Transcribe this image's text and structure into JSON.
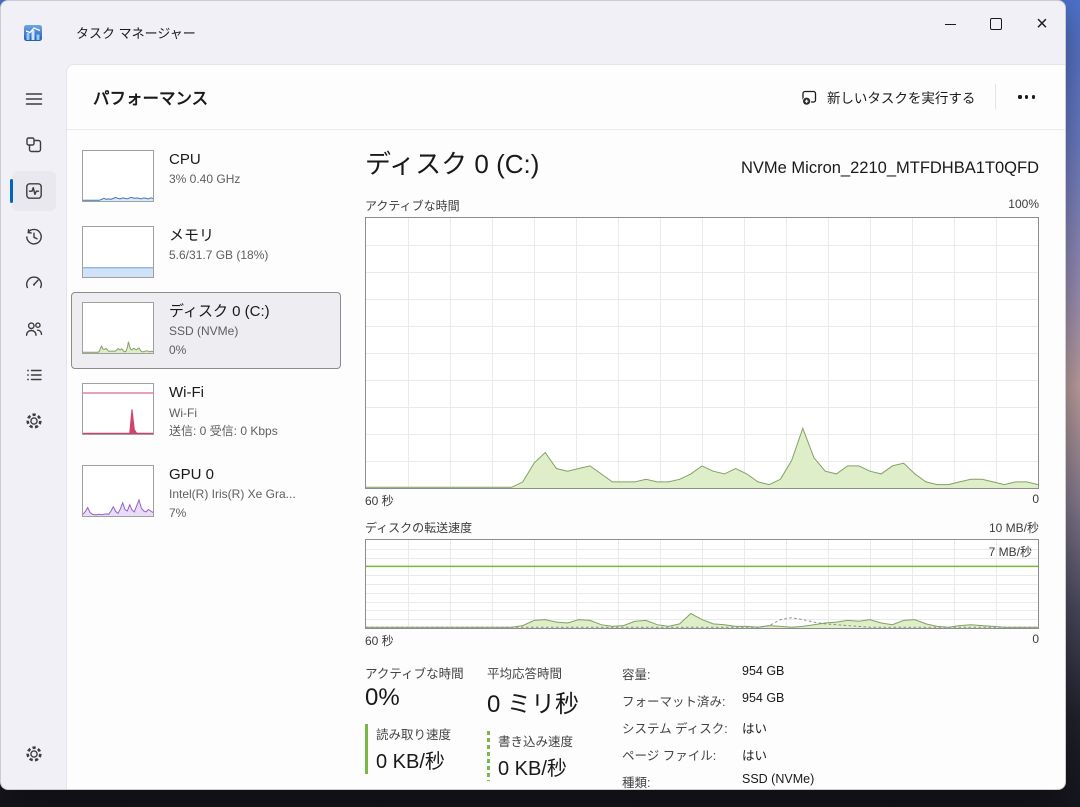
{
  "window": {
    "title": "タスク マネージャー"
  },
  "titlebar_icons": [
    "task-manager-app-icon",
    "minimize-icon",
    "maximize-icon",
    "close-icon"
  ],
  "header": {
    "title": "パフォーマンス",
    "run_task_label": "新しいタスクを実行する",
    "more_icon": "more-options-icon"
  },
  "sidebar": {
    "icons": [
      "hamburger-menu-icon",
      "processes-icon",
      "performance-icon",
      "app-history-icon",
      "startup-apps-icon",
      "users-icon",
      "details-icon",
      "services-icon"
    ],
    "selected_index": 2,
    "settings_icon": "settings-gear-icon"
  },
  "list": {
    "items": [
      {
        "id": "cpu",
        "title": "CPU",
        "line1": "3% 0.40 GHz"
      },
      {
        "id": "memory",
        "title": "メモリ",
        "line1": "5.6/31.7 GB (18%)"
      },
      {
        "id": "disk0",
        "title": "ディスク 0 (C:)",
        "line1": "SSD (NVMe)",
        "line2": "0%",
        "selected": true
      },
      {
        "id": "wifi",
        "title": "Wi-Fi",
        "line1": "Wi-Fi",
        "line2": "送信: 0 受信: 0 Kbps"
      },
      {
        "id": "gpu0",
        "title": "GPU 0",
        "line1": "Intel(R) Iris(R) Xe Gra...",
        "line2": "7%"
      }
    ]
  },
  "detail": {
    "title": "ディスク 0 (C:)",
    "subtitle": "NVMe Micron_2210_MTFDHBA1T0QFD",
    "chart1": {
      "label": "アクティブな時間",
      "max_label": "100%",
      "x_left": "60 秒",
      "x_right": "0"
    },
    "chart2": {
      "label": "ディスクの転送速度",
      "max_label": "10 MB/秒",
      "threshold_label": "7 MB/秒",
      "x_left": "60 秒",
      "x_right": "0"
    },
    "stats": {
      "active_time": {
        "label": "アクティブな時間",
        "value": "0%"
      },
      "response_time": {
        "label": "平均応答時間",
        "value": "0 ミリ秒"
      },
      "read_speed": {
        "label": "読み取り速度",
        "value": "0 KB/秒"
      },
      "write_speed": {
        "label": "書き込み速度",
        "value": "0 KB/秒"
      },
      "info": [
        {
          "label": "容量:",
          "value": "954 GB"
        },
        {
          "label": "フォーマット済み:",
          "value": "954 GB"
        },
        {
          "label": "システム ディスク:",
          "value": "はい"
        },
        {
          "label": "ページ ファイル:",
          "value": "はい"
        },
        {
          "label": "種類:",
          "value": "SSD (NVMe)"
        }
      ]
    }
  },
  "colors": {
    "accent": "#0067c0",
    "disk_green_line": "#85a065",
    "disk_green_fill": "#ddeec9",
    "threshold_green": "#7cb53e",
    "cpu_blue": "#3f75be",
    "memory_blue": "#6f9fd8",
    "wifi_red": "#d0436f",
    "gpu_purple": "#9661c9"
  },
  "charts": {
    "active_time": {
      "ymax": 100,
      "grid": [
        16,
        10
      ],
      "grid_color": "#eaeaea",
      "series": [
        {
          "type": "area",
          "stroke": "#85a065",
          "fill": "#ddeec9",
          "values": [
            0,
            0,
            0,
            0,
            0,
            0,
            0,
            0,
            0,
            0,
            0,
            0,
            0,
            0,
            2,
            9,
            13,
            7,
            6,
            7,
            8,
            5,
            2,
            2,
            2,
            3,
            2,
            2,
            3,
            5,
            8,
            6,
            5,
            7,
            5,
            2,
            1,
            3,
            10,
            22,
            11,
            6,
            5,
            8,
            8,
            6,
            5,
            8,
            9,
            5,
            2,
            1,
            1,
            2,
            3,
            3,
            2,
            1,
            2,
            2,
            1
          ]
        }
      ]
    },
    "transfer_rate": {
      "ymax": 10,
      "grid": [
        16,
        10
      ],
      "grid_color": "#eaeaea",
      "threshold": {
        "value": 7,
        "color": "#7cb53e"
      },
      "series": [
        {
          "type": "area",
          "stroke": "#85a065",
          "fill": "#ddeec9",
          "values": [
            0,
            0,
            0,
            0,
            0,
            0,
            0,
            0,
            0,
            0,
            0,
            0,
            0,
            0,
            0.2,
            0.8,
            0.9,
            0.6,
            0.5,
            0.9,
            0.8,
            0.3,
            0.1,
            0.2,
            0.7,
            0.8,
            0.3,
            0.1,
            0.4,
            1.6,
            0.9,
            0.4,
            0.3,
            0.1,
            0.1,
            0,
            0.2,
            0.1,
            0,
            0.1,
            0.3,
            0.5,
            0.6,
            0.8,
            0.7,
            0.9,
            0.5,
            0.3,
            0.8,
            0.9,
            0.4,
            0.1,
            0,
            0.2,
            0.3,
            0.2,
            0.1,
            0,
            0,
            0,
            0
          ]
        },
        {
          "type": "line",
          "stroke": "#8c8c8c",
          "dash": "2.5 2.5",
          "values": [
            0,
            0,
            0,
            0,
            0,
            0,
            0,
            0,
            0,
            0,
            0,
            0,
            0,
            0,
            0,
            0,
            0,
            0,
            0,
            0,
            0,
            0,
            0,
            0,
            0,
            0,
            0,
            0,
            0,
            0,
            0,
            0,
            0,
            0,
            0,
            0,
            0.2,
            0.9,
            1.1,
            0.9,
            0.6,
            0.4,
            0.3,
            0.2,
            0.1,
            0,
            0,
            0,
            0,
            0,
            0,
            0,
            0,
            0,
            0,
            0,
            0,
            0,
            0,
            0,
            0
          ]
        }
      ]
    },
    "cpu_mini": {
      "ymax": 100,
      "series": [
        {
          "type": "area",
          "stroke": "#3f75be",
          "fill": "#dbe8f8",
          "values": [
            0,
            0,
            0,
            0,
            0,
            0,
            0,
            0,
            2,
            4,
            2,
            3,
            2,
            4,
            6,
            4,
            3,
            5,
            4,
            3,
            5,
            6,
            4,
            5,
            4,
            3,
            5,
            4,
            3,
            5,
            4
          ]
        }
      ]
    },
    "memory_mini": {
      "ymax": 100,
      "series": [
        {
          "type": "area",
          "stroke": "#6f9fd8",
          "fill": "#cfe2f7",
          "values": [
            18,
            18
          ]
        }
      ]
    },
    "disk_mini": {
      "ymax": 100,
      "series": [
        {
          "type": "area",
          "stroke": "#85a065",
          "fill": "#ddeec9",
          "values": [
            0,
            0,
            0,
            0,
            0,
            0,
            0,
            0,
            0,
            0,
            0,
            0,
            0,
            0,
            2,
            9,
            13,
            7,
            6,
            7,
            8,
            5,
            2,
            2,
            2,
            3,
            2,
            2,
            3,
            5,
            8,
            6,
            5,
            7,
            5,
            2,
            1,
            3,
            10,
            22,
            11,
            6,
            5,
            8,
            8,
            6,
            5,
            8,
            9,
            5,
            2,
            1,
            1,
            2,
            3,
            3,
            2,
            1,
            2,
            2,
            1
          ]
        }
      ]
    },
    "wifi_mini": {
      "ymax": 100,
      "series": [
        {
          "type": "line",
          "stroke": "#d0436f",
          "values": [
            84,
            84
          ]
        },
        {
          "type": "area",
          "stroke": "#d0436f",
          "fill": "#d0436f",
          "values": [
            0,
            0,
            0,
            0,
            0,
            0,
            0,
            0,
            0,
            0,
            0,
            0,
            0,
            0,
            0,
            0,
            0,
            0,
            0,
            0,
            0,
            50,
            8,
            0,
            0,
            0,
            0,
            0,
            0,
            0,
            0
          ]
        }
      ]
    },
    "gpu_mini": {
      "ymax": 100,
      "series": [
        {
          "type": "area",
          "stroke": "#9661c9",
          "fill": "#e8dcf6",
          "values": [
            2,
            8,
            16,
            6,
            2,
            1,
            1,
            2,
            1,
            2,
            3,
            2,
            9,
            18,
            8,
            4,
            13,
            26,
            12,
            9,
            22,
            11,
            7,
            20,
            32,
            15,
            9,
            7,
            12,
            9,
            6
          ]
        }
      ]
    }
  }
}
